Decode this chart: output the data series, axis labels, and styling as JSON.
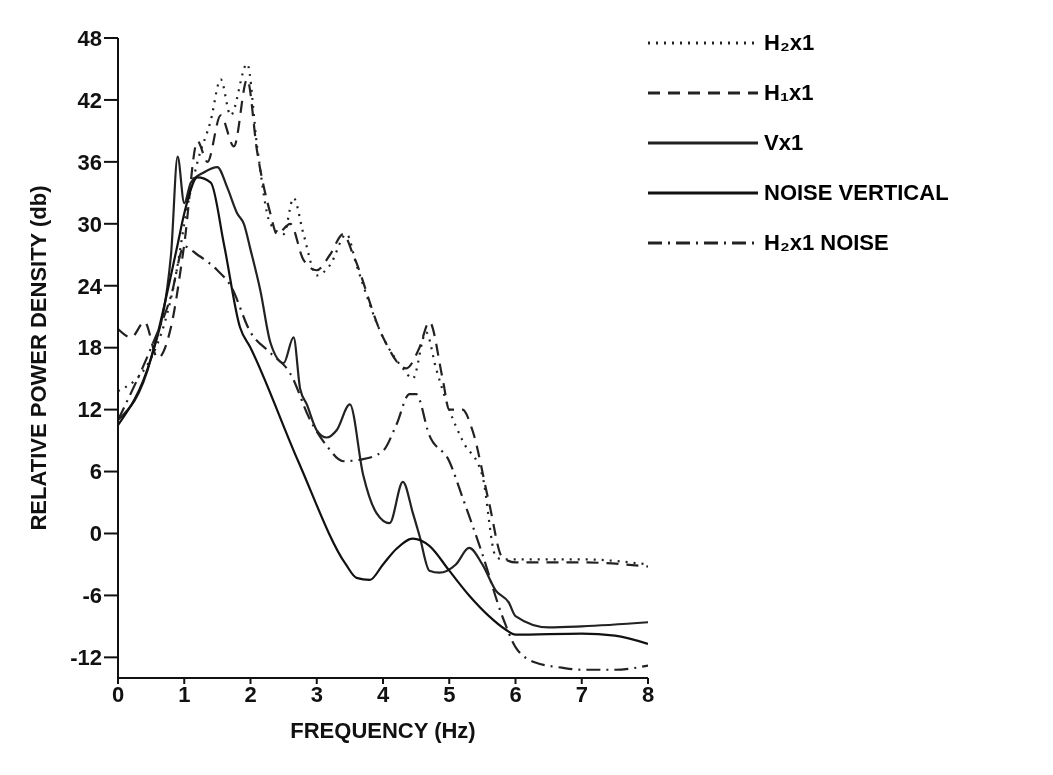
{
  "chart_data": {
    "type": "line",
    "xlabel": "FREQUENCY (Hz)",
    "ylabel": "RELATIVE POWER DENSITY (db)",
    "xlim": [
      0,
      8
    ],
    "xticks": [
      0,
      1,
      2,
      3,
      4,
      5,
      6,
      7,
      8
    ],
    "ylim": [
      -14,
      48
    ],
    "yticks": [
      -12,
      -6,
      0,
      6,
      12,
      18,
      24,
      30,
      36,
      42,
      48
    ],
    "grid": false,
    "legend": "top right",
    "series": [
      {
        "name": "H₂x1",
        "color": "#222222",
        "line_style": "dotted",
        "x": [
          0,
          0.5,
          0.9,
          1,
          1.2,
          1.4,
          1.55,
          1.7,
          1.95,
          2.1,
          2.3,
          2.5,
          2.65,
          2.8,
          3,
          3.2,
          3.45,
          3.6,
          4,
          4.3,
          4.45,
          4.65,
          4.8,
          5,
          5.2,
          5.5,
          5.7,
          5.8,
          6.5,
          7,
          8
        ],
        "values": [
          13.8,
          17,
          26,
          30,
          36,
          40,
          44,
          40.5,
          45.5,
          37.5,
          30,
          29,
          32.5,
          29,
          25,
          26,
          29,
          26,
          19,
          16,
          15,
          19.5,
          16,
          12,
          9,
          5.6,
          -2.2,
          -2.5,
          -2.5,
          -2.5,
          -3
        ]
      },
      {
        "name": "H₁x1",
        "color": "#222222",
        "line_style": "dashed",
        "x": [
          0,
          0.2,
          0.4,
          0.6,
          0.8,
          1,
          1.2,
          1.35,
          1.55,
          1.75,
          1.95,
          2.1,
          2.3,
          2.4,
          2.6,
          2.8,
          3,
          3.2,
          3.4,
          3.55,
          4,
          4.35,
          4.55,
          4.7,
          4.9,
          5,
          5.2,
          5.35,
          5.6,
          5.8,
          6,
          7,
          8
        ],
        "values": [
          19.8,
          19,
          20.5,
          17,
          20,
          28,
          38,
          36,
          40.5,
          37.5,
          44,
          37,
          31,
          29,
          30,
          26.5,
          25.5,
          27,
          29,
          27,
          19,
          16,
          18,
          20.5,
          15,
          12,
          12,
          10,
          3,
          -2.3,
          -2.8,
          -2.8,
          -3.2
        ]
      },
      {
        "name": "Vx1",
        "color": "#222222",
        "line_style": "solid",
        "x": [
          0,
          0.5,
          0.8,
          0.9,
          1,
          1.1,
          1.3,
          1.5,
          1.65,
          1.8,
          1.9,
          2,
          2.15,
          2.3,
          2.5,
          2.65,
          2.75,
          2.85,
          3,
          3.15,
          3.3,
          3.5,
          3.7,
          3.9,
          4.1,
          4.3,
          4.45,
          4.55,
          4.7,
          4.85,
          5.1,
          5.3,
          5.5,
          5.7,
          5.9,
          6,
          6.5,
          7,
          8
        ],
        "values": [
          11,
          17,
          27,
          36.5,
          32,
          34,
          35,
          35.5,
          33.5,
          31,
          30,
          27.5,
          23.5,
          18.5,
          16.5,
          19,
          14,
          12.5,
          10,
          9.3,
          10,
          12.5,
          5.7,
          2,
          1,
          5,
          2,
          -0.2,
          -3.6,
          -3.8,
          -3,
          -1.4,
          -3,
          -5.5,
          -6.7,
          -8,
          -9.1,
          -9,
          -8.6
        ]
      },
      {
        "name": "NOISE VERTICAL",
        "color": "#111111",
        "line_style": "solid",
        "x": [
          0,
          0.5,
          0.9,
          1,
          1.2,
          1.4,
          1.6,
          1.84,
          2,
          2.72,
          3.44,
          3.6,
          3.8,
          4,
          4.2,
          4.45,
          4.7,
          5,
          5.3,
          5.6,
          5.85,
          6,
          7,
          7.5,
          8
        ],
        "values": [
          10.5,
          17,
          28,
          31,
          34.5,
          34,
          28,
          20,
          18,
          7,
          -3,
          -4.3,
          -4.5,
          -3,
          -1.5,
          -0.5,
          -1.2,
          -3.6,
          -6,
          -8,
          -9.3,
          -9.8,
          -9.7,
          -9.9,
          -10.7
        ]
      },
      {
        "name": "H₂x1 NOISE",
        "color": "#222222",
        "line_style": "dashdot",
        "x": [
          0,
          0.5,
          0.8,
          1,
          1.2,
          1.5,
          1.7,
          2,
          2.3,
          2.6,
          2.9,
          3.15,
          3.4,
          3.7,
          4,
          4.2,
          4.4,
          4.5,
          4.7,
          5,
          5.2,
          5.5,
          5.8,
          6,
          6.3,
          6.7,
          7,
          7.5,
          8
        ],
        "values": [
          11,
          18,
          23,
          27.8,
          27,
          25.5,
          24,
          19.5,
          17.5,
          15.5,
          11,
          8.5,
          7,
          7.2,
          8,
          10.5,
          13.5,
          13.5,
          9.5,
          7,
          3.5,
          -2,
          -8,
          -11,
          -12.5,
          -13,
          -13.2,
          -13.2,
          -12.8
        ]
      }
    ]
  }
}
